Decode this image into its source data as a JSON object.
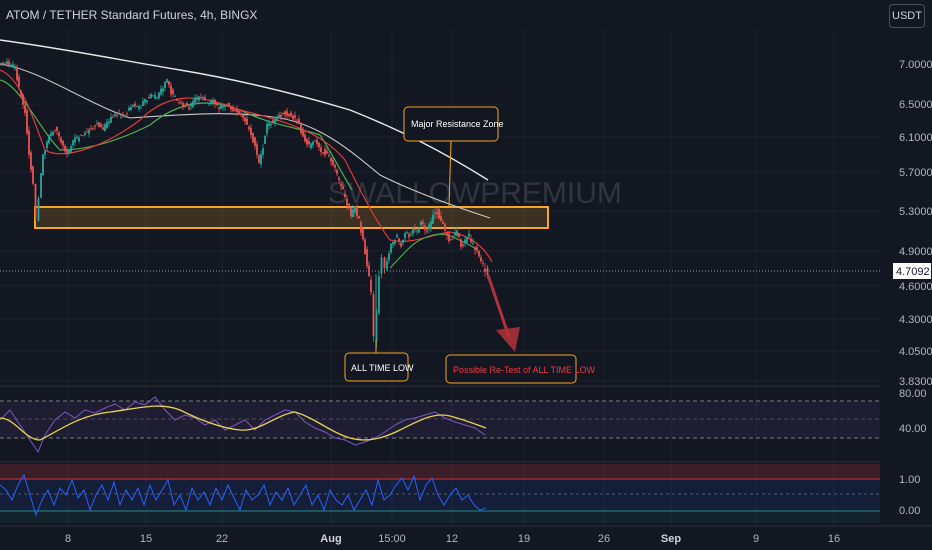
{
  "header": {
    "title": "ATOM / TETHER Standard Futures, 4h, BINGX",
    "currency": "USDT"
  },
  "watermark": "SWALLOWPREMIUM",
  "chart_data": {
    "type": "candlestick",
    "symbol": "ATOM / TETHER Standard Futures",
    "timeframe": "4h",
    "exchange": "BINGX",
    "last_price": "4.7092",
    "price_axis": [
      "7.0000",
      "6.5000",
      "6.1000",
      "5.7000",
      "5.3000",
      "4.9000",
      "4.6000",
      "4.3000",
      "4.0500",
      "3.8300"
    ],
    "rsi_axis": [
      "80.00",
      "40.00"
    ],
    "osc_axis": [
      "1.00",
      "0.00"
    ],
    "x_axis": [
      "8",
      "15",
      "22",
      "Aug",
      "15:00",
      "12",
      "19",
      "26",
      "Sep",
      "9",
      "16"
    ],
    "annotations": [
      {
        "text": "Major Resistance Zone",
        "color": "#ffffff"
      },
      {
        "text": "ALL TIME LOW",
        "color": "#ffffff"
      },
      {
        "text": "Possible Re-Test of ALL TIME LOW",
        "color": "#f23645"
      }
    ],
    "resistance_zone": {
      "low": 5.18,
      "high": 5.38
    },
    "projection_target": 4.05,
    "price_path": [
      [
        0,
        7.0
      ],
      [
        8,
        7.02
      ],
      [
        16,
        6.95
      ],
      [
        20,
        6.7
      ],
      [
        26,
        6.4
      ],
      [
        30,
        5.9
      ],
      [
        34,
        5.6
      ],
      [
        37,
        5.2
      ],
      [
        40,
        5.45
      ],
      [
        44,
        5.9
      ],
      [
        50,
        6.1
      ],
      [
        56,
        6.2
      ],
      [
        62,
        6.05
      ],
      [
        68,
        5.9
      ],
      [
        74,
        6.05
      ],
      [
        80,
        6.1
      ],
      [
        86,
        6.15
      ],
      [
        92,
        6.2
      ],
      [
        98,
        6.25
      ],
      [
        104,
        6.2
      ],
      [
        110,
        6.3
      ],
      [
        116,
        6.38
      ],
      [
        122,
        6.35
      ],
      [
        128,
        6.4
      ],
      [
        134,
        6.5
      ],
      [
        140,
        6.45
      ],
      [
        146,
        6.55
      ],
      [
        152,
        6.6
      ],
      [
        158,
        6.6
      ],
      [
        164,
        6.7
      ],
      [
        168,
        6.8
      ],
      [
        172,
        6.65
      ],
      [
        178,
        6.55
      ],
      [
        184,
        6.5
      ],
      [
        190,
        6.45
      ],
      [
        196,
        6.55
      ],
      [
        202,
        6.6
      ],
      [
        208,
        6.5
      ],
      [
        214,
        6.55
      ],
      [
        220,
        6.45
      ],
      [
        226,
        6.5
      ],
      [
        232,
        6.45
      ],
      [
        238,
        6.4
      ],
      [
        244,
        6.35
      ],
      [
        250,
        6.2
      ],
      [
        256,
        6.0
      ],
      [
        260,
        5.8
      ],
      [
        264,
        6.0
      ],
      [
        268,
        6.25
      ],
      [
        274,
        6.3
      ],
      [
        280,
        6.35
      ],
      [
        286,
        6.4
      ],
      [
        292,
        6.35
      ],
      [
        298,
        6.3
      ],
      [
        304,
        6.1
      ],
      [
        310,
        6.0
      ],
      [
        316,
        6.05
      ],
      [
        322,
        5.95
      ],
      [
        328,
        5.9
      ],
      [
        334,
        5.8
      ],
      [
        340,
        5.6
      ],
      [
        346,
        5.45
      ],
      [
        352,
        5.25
      ],
      [
        356,
        5.35
      ],
      [
        360,
        5.2
      ],
      [
        364,
        5.0
      ],
      [
        368,
        4.8
      ],
      [
        372,
        4.55
      ],
      [
        375,
        4.15
      ],
      [
        378,
        4.35
      ],
      [
        380,
        4.7
      ],
      [
        383,
        4.85
      ],
      [
        386,
        4.75
      ],
      [
        390,
        4.9
      ],
      [
        394,
        5.0
      ],
      [
        398,
        5.05
      ],
      [
        402,
        4.95
      ],
      [
        406,
        5.1
      ],
      [
        410,
        5.05
      ],
      [
        414,
        5.15
      ],
      [
        418,
        5.1
      ],
      [
        422,
        5.2
      ],
      [
        426,
        5.1
      ],
      [
        430,
        5.15
      ],
      [
        434,
        5.25
      ],
      [
        438,
        5.3
      ],
      [
        442,
        5.2
      ],
      [
        446,
        5.1
      ],
      [
        450,
        5.0
      ],
      [
        454,
        5.05
      ],
      [
        458,
        5.1
      ],
      [
        462,
        4.95
      ],
      [
        466,
        5.0
      ],
      [
        470,
        5.05
      ],
      [
        474,
        4.95
      ],
      [
        478,
        4.9
      ],
      [
        482,
        4.8
      ],
      [
        486,
        4.75
      ],
      [
        489,
        4.71
      ]
    ]
  }
}
